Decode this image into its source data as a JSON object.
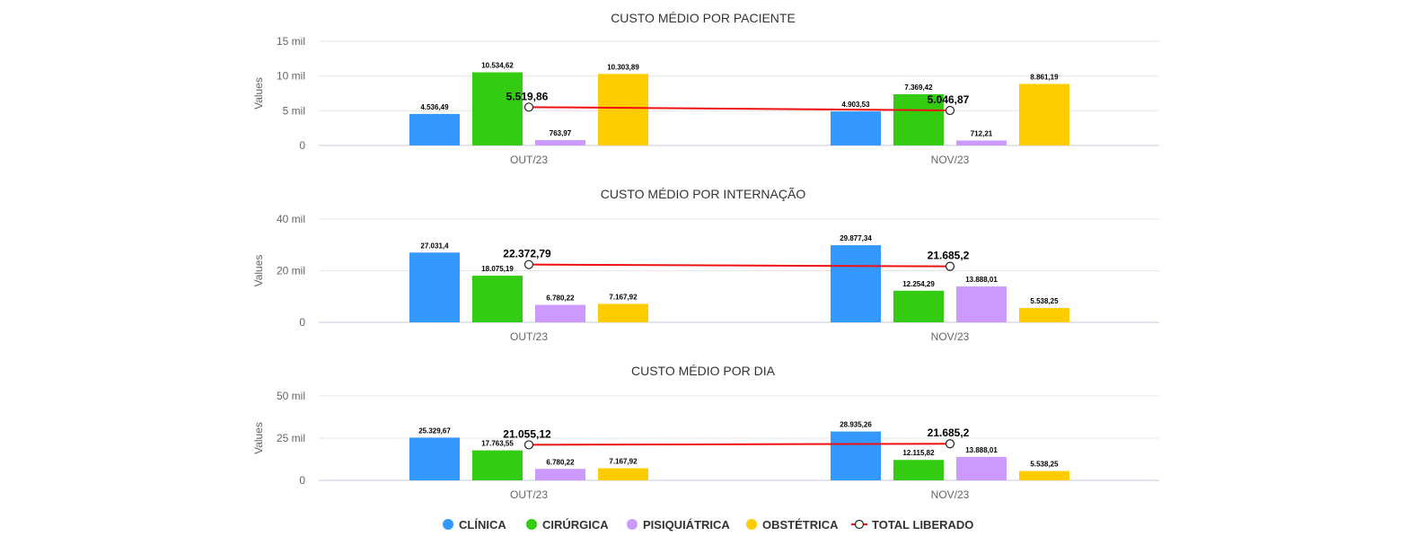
{
  "legend": {
    "items": [
      {
        "label": "CLÍNICA",
        "color": "#3399ff",
        "kind": "dot"
      },
      {
        "label": "CIRÚRGICA",
        "color": "#33cc11",
        "kind": "dot"
      },
      {
        "label": "PISIQUIÁTRICA",
        "color": "#cc99ff",
        "kind": "dot"
      },
      {
        "label": "OBSTÉTRICA",
        "color": "#ffcc00",
        "kind": "dot"
      },
      {
        "label": "TOTAL LIBERADO",
        "color": "#ee1111",
        "kind": "line"
      }
    ]
  },
  "chart_data": [
    {
      "type": "bar",
      "title": "CUSTO MÉDIO POR PACIENTE",
      "ylabel": "Values",
      "ylim": [
        0,
        15000
      ],
      "yticks": [
        {
          "value": 0,
          "label": "0"
        },
        {
          "value": 5000,
          "label": "5 mil"
        },
        {
          "value": 10000,
          "label": "10 mil"
        },
        {
          "value": 15000,
          "label": "15 mil"
        }
      ],
      "categories": [
        "OUT/23",
        "NOV/23"
      ],
      "series": [
        {
          "name": "CLÍNICA",
          "values": [
            4536.49,
            4903.53
          ],
          "labels": [
            "4.536,49",
            "4.903,53"
          ]
        },
        {
          "name": "CIRÚRGICA",
          "values": [
            10534.62,
            7369.42
          ],
          "labels": [
            "10.534,62",
            "7.369,42"
          ]
        },
        {
          "name": "PISIQUIÁTRICA",
          "values": [
            763.97,
            712.21
          ],
          "labels": [
            "763,97",
            "712,21"
          ]
        },
        {
          "name": "OBSTÉTRICA",
          "values": [
            10303.89,
            8861.19
          ],
          "labels": [
            "10.303,89",
            "8.861,19"
          ]
        }
      ],
      "line": {
        "name": "TOTAL LIBERADO",
        "values": [
          5519.86,
          5046.87
        ],
        "labels": [
          "5.519,86",
          "5.046,87"
        ]
      }
    },
    {
      "type": "bar",
      "title": "CUSTO MÉDIO POR INTERNAÇÃO",
      "ylabel": "Values",
      "ylim": [
        0,
        40000
      ],
      "yticks": [
        {
          "value": 0,
          "label": "0"
        },
        {
          "value": 20000,
          "label": "20 mil"
        },
        {
          "value": 40000,
          "label": "40 mil"
        }
      ],
      "categories": [
        "OUT/23",
        "NOV/23"
      ],
      "series": [
        {
          "name": "CLÍNICA",
          "values": [
            27031.4,
            29877.34
          ],
          "labels": [
            "27.031,4",
            "29.877,34"
          ]
        },
        {
          "name": "CIRÚRGICA",
          "values": [
            18075.19,
            12254.29
          ],
          "labels": [
            "18.075,19",
            "12.254,29"
          ]
        },
        {
          "name": "PISIQUIÁTRICA",
          "values": [
            6780.22,
            13888.01
          ],
          "labels": [
            "6.780,22",
            "13.888,01"
          ]
        },
        {
          "name": "OBSTÉTRICA",
          "values": [
            7167.92,
            5538.25
          ],
          "labels": [
            "7.167,92",
            "5.538,25"
          ]
        }
      ],
      "line": {
        "name": "TOTAL LIBERADO",
        "values": [
          22372.79,
          21685.2
        ],
        "labels": [
          "22.372,79",
          "21.685,2"
        ]
      }
    },
    {
      "type": "bar",
      "title": "CUSTO MÉDIO POR DIA",
      "ylabel": "Values",
      "ylim": [
        0,
        50000
      ],
      "yticks": [
        {
          "value": 0,
          "label": "0"
        },
        {
          "value": 25000,
          "label": "25 mil"
        },
        {
          "value": 50000,
          "label": "50 mil"
        }
      ],
      "categories": [
        "OUT/23",
        "NOV/23"
      ],
      "series": [
        {
          "name": "CLÍNICA",
          "values": [
            25329.67,
            28935.26
          ],
          "labels": [
            "25.329,67",
            "28.935,26"
          ]
        },
        {
          "name": "CIRÚRGICA",
          "values": [
            17763.55,
            12115.82
          ],
          "labels": [
            "17.763,55",
            "12.115,82"
          ]
        },
        {
          "name": "PISIQUIÁTRICA",
          "values": [
            6780.22,
            13888.01
          ],
          "labels": [
            "6.780,22",
            "13.888,01"
          ]
        },
        {
          "name": "OBSTÉTRICA",
          "values": [
            7167.92,
            5538.25
          ],
          "labels": [
            "7.167,92",
            "5.538,25"
          ]
        }
      ],
      "line": {
        "name": "TOTAL LIBERADO",
        "values": [
          21055.12,
          21685.2
        ],
        "labels": [
          "21.055,12",
          "21.685,2"
        ]
      }
    }
  ]
}
